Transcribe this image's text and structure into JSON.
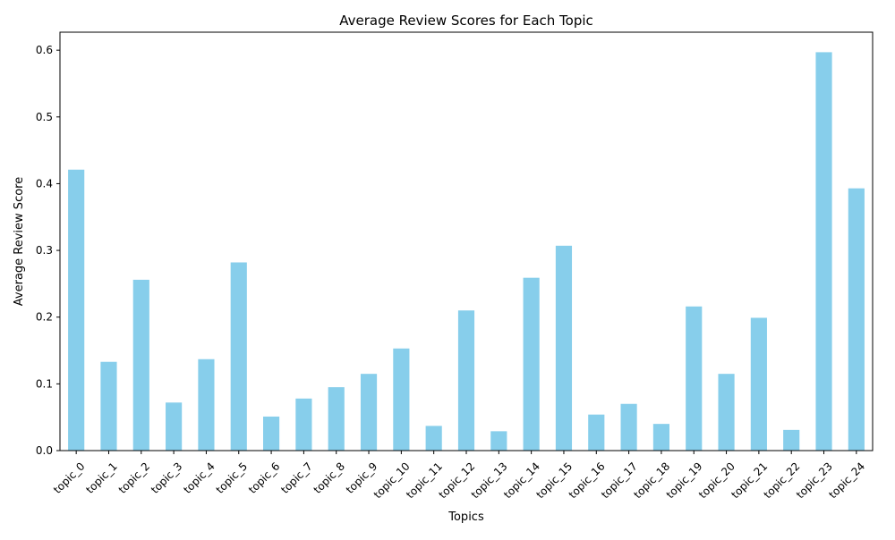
{
  "colors": {
    "bar": "#87ceeb",
    "axis": "#000000",
    "background": "#ffffff"
  },
  "chart_data": {
    "type": "bar",
    "title": "Average Review Scores for Each Topic",
    "xlabel": "Topics",
    "ylabel": "Average Review Score",
    "categories": [
      "topic_0",
      "topic_1",
      "topic_2",
      "topic_3",
      "topic_4",
      "topic_5",
      "topic_6",
      "topic_7",
      "topic_8",
      "topic_9",
      "topic_10",
      "topic_11",
      "topic_12",
      "topic_13",
      "topic_14",
      "topic_15",
      "topic_16",
      "topic_17",
      "topic_18",
      "topic_19",
      "topic_20",
      "topic_21",
      "topic_22",
      "topic_23",
      "topic_24"
    ],
    "values": [
      0.421,
      0.133,
      0.256,
      0.072,
      0.137,
      0.282,
      0.051,
      0.078,
      0.095,
      0.115,
      0.153,
      0.037,
      0.21,
      0.029,
      0.259,
      0.307,
      0.054,
      0.07,
      0.04,
      0.216,
      0.115,
      0.199,
      0.031,
      0.597,
      0.393
    ],
    "ylim": [
      0,
      0.627
    ],
    "yticks": [
      0.0,
      0.1,
      0.2,
      0.3,
      0.4,
      0.5,
      0.6
    ],
    "ytick_labels": [
      "0.0",
      "0.1",
      "0.2",
      "0.3",
      "0.4",
      "0.5",
      "0.6"
    ],
    "grid": false,
    "legend": "none"
  }
}
